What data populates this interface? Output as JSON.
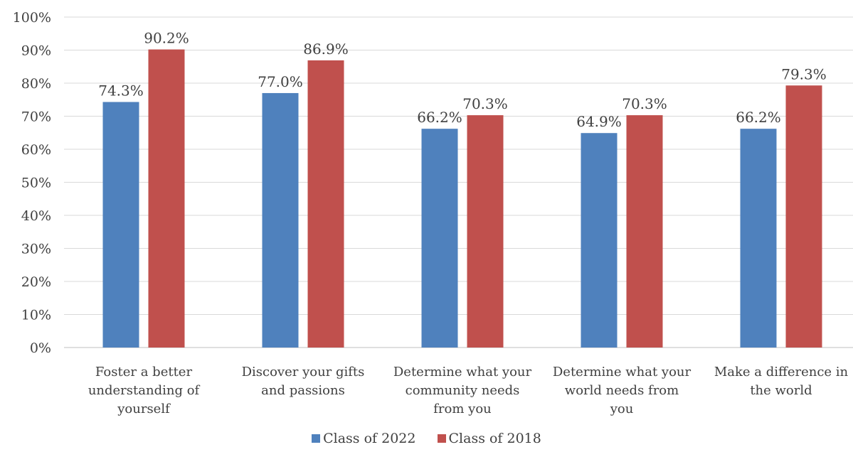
{
  "chart_data": {
    "type": "bar",
    "categories": [
      [
        "Foster a better",
        "understanding of",
        "yourself"
      ],
      [
        "Discover your gifts",
        "and passions"
      ],
      [
        "Determine what your",
        "community needs",
        "from you"
      ],
      [
        "Determine what your",
        "world needs from",
        "you"
      ],
      [
        "Make a difference in",
        "the world"
      ]
    ],
    "series": [
      {
        "name": "Class of 2022",
        "color": "#4f81bd",
        "values": [
          74.3,
          77.0,
          66.2,
          64.9,
          66.2
        ],
        "labels": [
          "74.3%",
          "77.0%",
          "66.2%",
          "64.9%",
          "66.2%"
        ]
      },
      {
        "name": "Class of 2018",
        "color": "#c0504d",
        "values": [
          90.2,
          86.9,
          70.3,
          70.3,
          79.3
        ],
        "labels": [
          "90.2%",
          "86.9%",
          "70.3%",
          "70.3%",
          "79.3%"
        ]
      }
    ],
    "ylim": [
      0,
      100
    ],
    "yticks": [
      "0%",
      "10%",
      "20%",
      "30%",
      "40%",
      "50%",
      "60%",
      "70%",
      "80%",
      "90%",
      "100%"
    ],
    "grid": true,
    "legend_position": "bottom"
  }
}
